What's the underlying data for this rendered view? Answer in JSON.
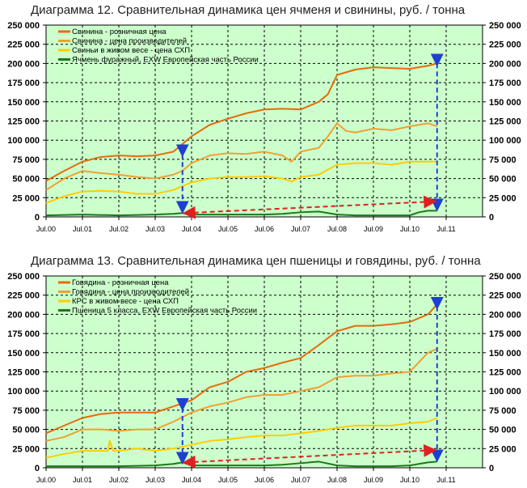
{
  "chart_data": [
    {
      "type": "line",
      "title": "Диаграмма 12. Сравнительная динамика цен ячменя и свинины, руб. / тонна",
      "xlabel": "",
      "ylabel": "",
      "ylim": [
        0,
        250000
      ],
      "xlim_years_since_jul2000": [
        0,
        12
      ],
      "yticks": [
        "0",
        "25 000",
        "50 000",
        "75 000",
        "100 000",
        "125 000",
        "150 000",
        "175 000",
        "200 000",
        "225 000",
        "250 000"
      ],
      "xticks": [
        "Jul.00",
        "Jul.01",
        "Jul.02",
        "Jul.03",
        "Jul.04",
        "Jul.05",
        "Jul.06",
        "Jul.07",
        "Jul.08",
        "Jul.09",
        "Jul.10",
        "Jul.11"
      ],
      "grid": true,
      "legend": "top-left",
      "background": "#ccffcc",
      "series": [
        {
          "name": "Свинина - розничная цена",
          "color": "#e46c0a",
          "x": [
            0,
            0.5,
            1,
            1.5,
            2,
            2.5,
            3,
            3.5,
            3.75,
            4,
            4.5,
            5,
            5.5,
            6,
            6.5,
            7,
            7.25,
            7.5,
            7.75,
            8,
            8.5,
            9,
            9.5,
            10,
            10.5,
            10.75
          ],
          "y": [
            47000,
            60000,
            72000,
            78000,
            80000,
            79000,
            80000,
            85000,
            95000,
            105000,
            120000,
            128000,
            135000,
            140000,
            141000,
            140000,
            145000,
            150000,
            160000,
            185000,
            192000,
            195000,
            194000,
            193000,
            197000,
            200000
          ]
        },
        {
          "name": "Свинина - цена производителей",
          "color": "#f0a030",
          "x": [
            0,
            0.5,
            1,
            1.5,
            2,
            2.5,
            3,
            3.5,
            3.75,
            4,
            4.5,
            5,
            5.5,
            6,
            6.5,
            6.75,
            7,
            7.5,
            7.75,
            8,
            8.25,
            8.5,
            9,
            9.5,
            10,
            10.5,
            10.75
          ],
          "y": [
            35000,
            50000,
            60000,
            57000,
            55000,
            52000,
            50000,
            55000,
            60000,
            70000,
            80000,
            83000,
            82000,
            85000,
            80000,
            72000,
            85000,
            90000,
            105000,
            122000,
            112000,
            110000,
            115000,
            113000,
            118000,
            122000,
            118000
          ]
        },
        {
          "name": "Свиньи в живом весе - цена СХП",
          "color": "#ffcc00",
          "x": [
            0,
            0.5,
            1,
            1.5,
            2,
            2.5,
            3,
            3.5,
            4,
            4.5,
            5,
            5.5,
            6,
            6.5,
            6.75,
            7,
            7.5,
            8,
            8.5,
            9,
            9.5,
            10,
            10.5,
            10.75
          ],
          "y": [
            18000,
            27000,
            33000,
            34000,
            33000,
            30000,
            30000,
            35000,
            45000,
            50000,
            52000,
            52000,
            53000,
            50000,
            46000,
            52000,
            55000,
            68000,
            70000,
            70000,
            68000,
            72000,
            72000,
            72000
          ]
        },
        {
          "name": "Ячмень фуражный, EXW Европейская часть России",
          "color": "#1a7a1a",
          "x": [
            0,
            1,
            2,
            3,
            3.5,
            3.75,
            4,
            5,
            6,
            6.5,
            7,
            7.5,
            8,
            8.5,
            9,
            9.5,
            10,
            10.25,
            10.5,
            10.75
          ],
          "y": [
            2000,
            3000,
            2000,
            3000,
            4000,
            5000,
            3000,
            3000,
            3000,
            4000,
            6000,
            7000,
            3000,
            2000,
            2000,
            2000,
            2000,
            6000,
            8000,
            8000
          ]
        }
      ],
      "annotations": {
        "blue_arrows": [
          {
            "x": 3.75,
            "from": 82000,
            "to": 5000
          },
          {
            "x": 10.75,
            "from": 200000,
            "to": 8000
          }
        ],
        "red_arrow": {
          "x": [
            3.75,
            10.65
          ],
          "y": [
            5000,
            20000
          ]
        }
      }
    },
    {
      "type": "line",
      "title": "Диаграмма 13. Сравнительная динамика цен пшеницы и говядины, руб. / тонна",
      "xlabel": "",
      "ylabel": "",
      "ylim": [
        0,
        250000
      ],
      "xlim_years_since_jul2000": [
        0,
        12
      ],
      "yticks": [
        "0",
        "25 000",
        "50 000",
        "75 000",
        "100 000",
        "125 000",
        "150 000",
        "175 000",
        "200 000",
        "225 000",
        "250 000"
      ],
      "xticks": [
        "Jul.00",
        "Jul.01",
        "Jul.02",
        "Jul.03",
        "Jul.04",
        "Jul.05",
        "Jul.06",
        "Jul.07",
        "Jul.08",
        "Jul.09",
        "Jul.10",
        "Jul.11"
      ],
      "grid": true,
      "legend": "top-left",
      "background": "#ccffcc",
      "series": [
        {
          "name": "Говядина - розничная цена",
          "color": "#e46c0a",
          "x": [
            0,
            0.5,
            1,
            1.5,
            2,
            2.5,
            3,
            3.5,
            4,
            4.5,
            5,
            5.5,
            6,
            6.5,
            7,
            7.5,
            8,
            8.5,
            9,
            9.5,
            10,
            10.5,
            10.75
          ],
          "y": [
            45000,
            55000,
            65000,
            70000,
            72000,
            72000,
            72000,
            80000,
            88000,
            105000,
            112000,
            125000,
            130000,
            137000,
            143000,
            160000,
            178000,
            185000,
            185000,
            187000,
            190000,
            200000,
            213000
          ]
        },
        {
          "name": "Говядина - цена производителей",
          "color": "#f0a030",
          "x": [
            0,
            0.5,
            1,
            1.5,
            2,
            2.5,
            3,
            3.5,
            4,
            4.5,
            5,
            5.5,
            6,
            6.5,
            7,
            7.5,
            8,
            8.5,
            9,
            9.5,
            10,
            10.5,
            10.75
          ],
          "y": [
            35000,
            40000,
            50000,
            50000,
            48000,
            50000,
            50000,
            60000,
            72000,
            80000,
            85000,
            92000,
            95000,
            95000,
            100000,
            105000,
            118000,
            120000,
            120000,
            123000,
            125000,
            150000,
            155000
          ]
        },
        {
          "name": "КРС в живом весе - цена СХП",
          "color": "#ffcc00",
          "x": [
            0,
            0.5,
            1,
            1.5,
            1.7,
            1.75,
            1.85,
            2,
            2.5,
            3,
            3.5,
            4,
            4.5,
            5,
            5.5,
            6,
            6.5,
            7,
            7.5,
            8,
            8.5,
            9,
            9.5,
            10,
            10.5,
            10.75
          ],
          "y": [
            13000,
            18000,
            22000,
            22000,
            22000,
            35000,
            22000,
            22000,
            25000,
            22000,
            25000,
            30000,
            35000,
            37000,
            40000,
            42000,
            42000,
            45000,
            48000,
            52000,
            55000,
            55000,
            55000,
            58000,
            60000,
            65000
          ]
        },
        {
          "name": "Пшеница 5 класса, EXW Европейская часть России",
          "color": "#1a7a1a",
          "x": [
            0,
            1,
            2,
            3,
            3.5,
            3.75,
            4,
            5,
            6,
            6.5,
            7,
            7.5,
            8,
            8.5,
            9,
            9.5,
            10,
            10.25,
            10.5,
            10.75
          ],
          "y": [
            2000,
            2000,
            2000,
            3000,
            5000,
            7000,
            3000,
            3000,
            3000,
            4000,
            6000,
            8000,
            3000,
            2000,
            2000,
            2000,
            3000,
            5000,
            7000,
            8000
          ]
        }
      ],
      "annotations": {
        "blue_arrows": [
          {
            "x": 3.75,
            "from": 78000,
            "to": 5000
          },
          {
            "x": 10.75,
            "from": 210000,
            "to": 8000
          }
        ],
        "red_arrow": {
          "x": [
            3.75,
            10.65
          ],
          "y": [
            7000,
            23000
          ]
        }
      }
    }
  ]
}
